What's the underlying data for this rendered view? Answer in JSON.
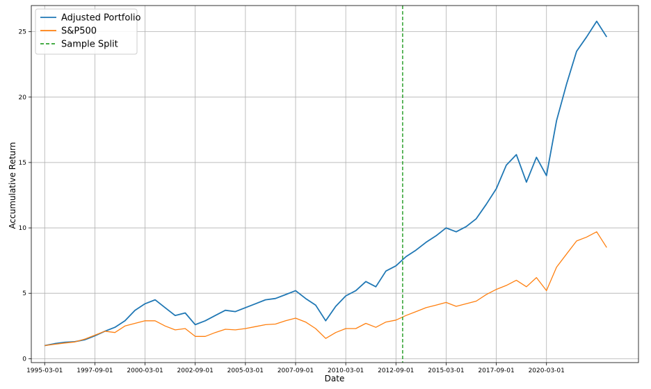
{
  "chart_data": {
    "type": "line",
    "title": "",
    "xlabel": "Date",
    "ylabel": "Accumulative Return",
    "xlim": [
      "1994-07-01",
      "2024-10-01"
    ],
    "ylim": [
      -0.3,
      27.0
    ],
    "grid": true,
    "legend_position": "top-left",
    "x_ticks": [
      "1995-03-01",
      "1997-09-01",
      "2000-03-01",
      "2002-09-01",
      "2005-03-01",
      "2007-09-01",
      "2010-03-01",
      "2012-09-01",
      "2015-03-01",
      "2017-09-01",
      "2020-03-01"
    ],
    "y_ticks": [
      0,
      5,
      10,
      15,
      20,
      25
    ],
    "series": [
      {
        "name": "Adjusted Portfolio",
        "color": "#1f77b4",
        "style": "solid",
        "points": [
          [
            "1995-03-01",
            1.0
          ],
          [
            "1995-09-01",
            1.15
          ],
          [
            "1996-03-01",
            1.25
          ],
          [
            "1996-09-01",
            1.3
          ],
          [
            "1997-03-01",
            1.45
          ],
          [
            "1997-09-01",
            1.75
          ],
          [
            "1998-03-01",
            2.1
          ],
          [
            "1998-09-01",
            2.4
          ],
          [
            "1999-03-01",
            2.9
          ],
          [
            "1999-09-01",
            3.7
          ],
          [
            "2000-03-01",
            4.2
          ],
          [
            "2000-09-01",
            4.5
          ],
          [
            "2001-03-01",
            3.9
          ],
          [
            "2001-09-01",
            3.3
          ],
          [
            "2002-03-01",
            3.5
          ],
          [
            "2002-09-01",
            2.6
          ],
          [
            "2003-03-01",
            2.9
          ],
          [
            "2003-09-01",
            3.3
          ],
          [
            "2004-03-01",
            3.7
          ],
          [
            "2004-09-01",
            3.6
          ],
          [
            "2005-03-01",
            3.9
          ],
          [
            "2005-09-01",
            4.2
          ],
          [
            "2006-03-01",
            4.5
          ],
          [
            "2006-09-01",
            4.6
          ],
          [
            "2007-03-01",
            4.9
          ],
          [
            "2007-09-01",
            5.2
          ],
          [
            "2008-03-01",
            4.6
          ],
          [
            "2008-09-01",
            4.1
          ],
          [
            "2009-03-01",
            2.9
          ],
          [
            "2009-09-01",
            4.0
          ],
          [
            "2010-03-01",
            4.8
          ],
          [
            "2010-09-01",
            5.2
          ],
          [
            "2011-03-01",
            5.9
          ],
          [
            "2011-09-01",
            5.5
          ],
          [
            "2012-03-01",
            6.7
          ],
          [
            "2012-09-01",
            7.1
          ],
          [
            "2013-03-01",
            7.8
          ],
          [
            "2013-09-01",
            8.3
          ],
          [
            "2014-03-01",
            8.9
          ],
          [
            "2014-09-01",
            9.4
          ],
          [
            "2015-03-01",
            10.0
          ],
          [
            "2015-09-01",
            9.7
          ],
          [
            "2016-03-01",
            10.1
          ],
          [
            "2016-09-01",
            10.7
          ],
          [
            "2017-03-01",
            11.8
          ],
          [
            "2017-09-01",
            13.0
          ],
          [
            "2018-03-01",
            14.8
          ],
          [
            "2018-09-01",
            15.6
          ],
          [
            "2019-03-01",
            13.5
          ],
          [
            "2019-09-01",
            15.4
          ],
          [
            "2020-03-01",
            14.0
          ],
          [
            "2020-09-01",
            18.2
          ],
          [
            "2021-03-01",
            21.0
          ],
          [
            "2021-09-01",
            23.5
          ],
          [
            "2022-03-01",
            24.6
          ],
          [
            "2022-09-01",
            25.8
          ],
          [
            "2023-03-01",
            24.6
          ]
        ]
      },
      {
        "name": "S&P500",
        "color": "#ff7f0e",
        "style": "solid",
        "points": [
          [
            "1995-03-01",
            1.0
          ],
          [
            "1995-09-01",
            1.1
          ],
          [
            "1996-03-01",
            1.2
          ],
          [
            "1996-09-01",
            1.28
          ],
          [
            "1997-03-01",
            1.5
          ],
          [
            "1997-09-01",
            1.8
          ],
          [
            "1998-03-01",
            2.1
          ],
          [
            "1998-09-01",
            2.0
          ],
          [
            "1999-03-01",
            2.5
          ],
          [
            "1999-09-01",
            2.7
          ],
          [
            "2000-03-01",
            2.9
          ],
          [
            "2000-09-01",
            2.9
          ],
          [
            "2001-03-01",
            2.5
          ],
          [
            "2001-09-01",
            2.2
          ],
          [
            "2002-03-01",
            2.3
          ],
          [
            "2002-09-01",
            1.7
          ],
          [
            "2003-03-01",
            1.7
          ],
          [
            "2003-09-01",
            2.0
          ],
          [
            "2004-03-01",
            2.25
          ],
          [
            "2004-09-01",
            2.2
          ],
          [
            "2005-03-01",
            2.3
          ],
          [
            "2005-09-01",
            2.45
          ],
          [
            "2006-03-01",
            2.6
          ],
          [
            "2006-09-01",
            2.65
          ],
          [
            "2007-03-01",
            2.9
          ],
          [
            "2007-09-01",
            3.1
          ],
          [
            "2008-03-01",
            2.8
          ],
          [
            "2008-09-01",
            2.3
          ],
          [
            "2009-03-01",
            1.55
          ],
          [
            "2009-09-01",
            2.0
          ],
          [
            "2010-03-01",
            2.3
          ],
          [
            "2010-09-01",
            2.3
          ],
          [
            "2011-03-01",
            2.7
          ],
          [
            "2011-09-01",
            2.4
          ],
          [
            "2012-03-01",
            2.8
          ],
          [
            "2012-09-01",
            2.95
          ],
          [
            "2013-03-01",
            3.3
          ],
          [
            "2013-09-01",
            3.6
          ],
          [
            "2014-03-01",
            3.9
          ],
          [
            "2014-09-01",
            4.1
          ],
          [
            "2015-03-01",
            4.3
          ],
          [
            "2015-09-01",
            4.0
          ],
          [
            "2016-03-01",
            4.2
          ],
          [
            "2016-09-01",
            4.4
          ],
          [
            "2017-03-01",
            4.9
          ],
          [
            "2017-09-01",
            5.3
          ],
          [
            "2018-03-01",
            5.6
          ],
          [
            "2018-09-01",
            6.0
          ],
          [
            "2019-03-01",
            5.5
          ],
          [
            "2019-09-01",
            6.2
          ],
          [
            "2020-03-01",
            5.2
          ],
          [
            "2020-09-01",
            7.0
          ],
          [
            "2021-03-01",
            8.0
          ],
          [
            "2021-09-01",
            9.0
          ],
          [
            "2022-03-01",
            9.3
          ],
          [
            "2022-09-01",
            9.7
          ],
          [
            "2023-03-01",
            8.5
          ]
        ]
      }
    ],
    "vlines": [
      {
        "name": "Sample Split",
        "x": "2013-01-01",
        "color": "#2ca02c",
        "style": "dashed"
      }
    ]
  }
}
